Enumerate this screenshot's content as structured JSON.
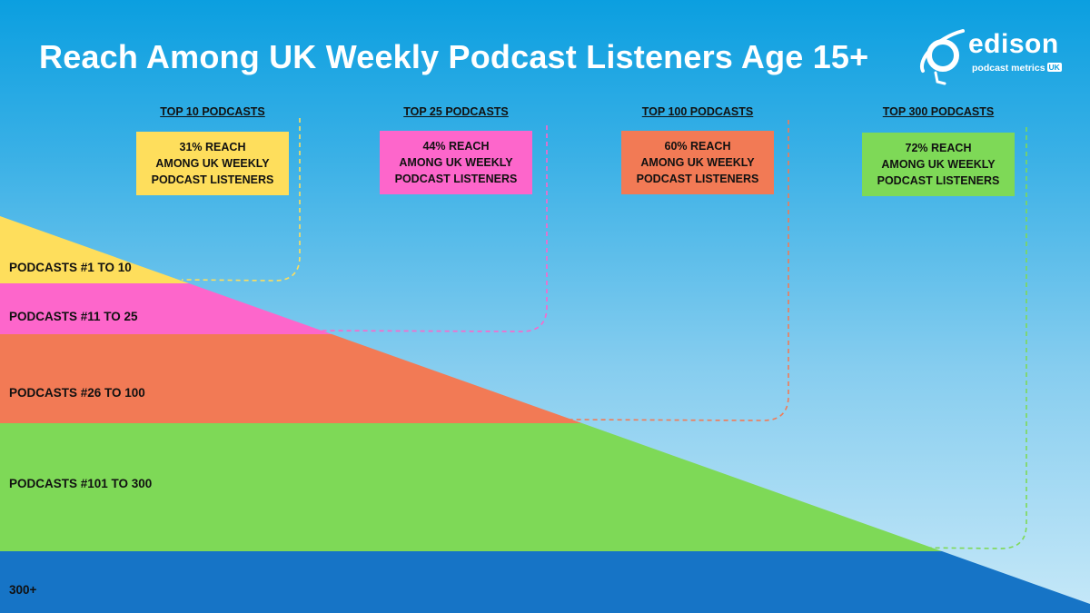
{
  "title": "Reach Among UK Weekly Podcast Listeners Age 15+",
  "logo": {
    "wordmark": "edison",
    "tagline": "podcast metrics",
    "badge": "UK",
    "icon": "planet-ring-icon"
  },
  "colors": {
    "top10": "#fede5c",
    "top25": "#fd66cb",
    "top100": "#f27a55",
    "top300": "#7ed957",
    "rest": "#1674c6"
  },
  "chart_data": {
    "type": "area",
    "groups": [
      {
        "header": "TOP 10 PODCASTS",
        "reach_lines": [
          "31% REACH",
          "AMONG UK WEEKLY",
          "PODCAST LISTENERS"
        ],
        "reach_pct": 31,
        "band_label": "PODCASTS #1 TO 10",
        "color": "#fede5c"
      },
      {
        "header": "TOP 25 PODCASTS",
        "reach_lines": [
          "44% REACH",
          "AMONG UK WEEKLY",
          "PODCAST LISTENERS"
        ],
        "reach_pct": 44,
        "band_label": "PODCASTS #11 TO 25",
        "color": "#fd66cb"
      },
      {
        "header": "TOP 100 PODCASTS",
        "reach_lines": [
          "60% REACH",
          "AMONG UK WEEKLY",
          "PODCAST LISTENERS"
        ],
        "reach_pct": 60,
        "band_label": "PODCASTS #26 TO 100",
        "color": "#f27a55"
      },
      {
        "header": "TOP 300 PODCASTS",
        "reach_lines": [
          "72% REACH",
          "AMONG UK WEEKLY",
          "PODCAST LISTENERS"
        ],
        "reach_pct": 72,
        "band_label": "PODCASTS #101 TO 300",
        "color": "#7ed957"
      }
    ],
    "remainder": {
      "band_label": "300+",
      "color": "#1674c6"
    }
  }
}
